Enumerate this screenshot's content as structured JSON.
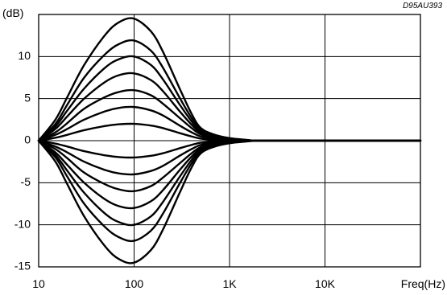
{
  "chart_data": {
    "type": "line",
    "title": "",
    "doc_code": "D95AU393",
    "xlabel": "Freq(Hz)",
    "ylabel": "(dB)",
    "x_scale": "log",
    "xlim": [
      10,
      100000
    ],
    "ylim": [
      -15,
      15
    ],
    "x_ticks": [
      {
        "value": 10,
        "label": "10"
      },
      {
        "value": 100,
        "label": "100"
      },
      {
        "value": 1000,
        "label": "1K"
      },
      {
        "value": 10000,
        "label": "10K"
      }
    ],
    "y_ticks": [
      {
        "value": 10,
        "label": "10"
      },
      {
        "value": 5,
        "label": "5"
      },
      {
        "value": 0,
        "label": "0"
      },
      {
        "value": -5,
        "label": "-5"
      },
      {
        "value": -10,
        "label": "-10"
      },
      {
        "value": -15,
        "label": "-15"
      }
    ],
    "grid": true,
    "line_color": "#000000",
    "x": [
      10,
      15,
      20,
      30,
      50,
      70,
      100,
      150,
      200,
      300,
      400,
      500,
      700,
      1000,
      1500,
      2000,
      5000,
      10000,
      100000
    ],
    "series": [
      {
        "values": [
          0,
          2.5,
          5.2,
          9.0,
          12.6,
          14.1,
          14.5,
          13.0,
          10.6,
          6.2,
          3.2,
          1.5,
          0.7,
          0.3,
          0.1,
          0,
          0,
          0,
          0
        ]
      },
      {
        "values": [
          0,
          2.0,
          4.3,
          7.5,
          10.3,
          11.5,
          11.9,
          10.7,
          8.7,
          5.1,
          2.7,
          1.3,
          0.6,
          0.25,
          0.08,
          0,
          0,
          0,
          0
        ]
      },
      {
        "values": [
          0,
          1.7,
          3.6,
          6.2,
          8.7,
          9.7,
          10.0,
          9.0,
          7.3,
          4.3,
          2.3,
          1.1,
          0.5,
          0.2,
          0.07,
          0,
          0,
          0,
          0
        ]
      },
      {
        "values": [
          0,
          1.4,
          2.9,
          5.0,
          7.0,
          7.8,
          8.0,
          7.2,
          5.9,
          3.5,
          1.9,
          0.95,
          0.4,
          0.17,
          0.05,
          0,
          0,
          0,
          0
        ]
      },
      {
        "values": [
          0,
          1.0,
          2.1,
          3.8,
          5.2,
          5.8,
          6.0,
          5.4,
          4.4,
          2.7,
          1.5,
          0.75,
          0.32,
          0.13,
          0.04,
          0,
          0,
          0,
          0
        ]
      },
      {
        "values": [
          0,
          0.7,
          1.4,
          2.5,
          3.5,
          3.9,
          4.0,
          3.6,
          3.0,
          1.8,
          1.0,
          0.5,
          0.22,
          0.09,
          0.03,
          0,
          0,
          0,
          0
        ]
      },
      {
        "values": [
          0,
          0.35,
          0.7,
          1.25,
          1.75,
          1.95,
          2.0,
          1.8,
          1.5,
          0.9,
          0.5,
          0.25,
          0.11,
          0.05,
          0.02,
          0,
          0,
          0,
          0
        ]
      },
      {
        "values": [
          0,
          -0.35,
          -0.7,
          -1.25,
          -1.75,
          -1.95,
          -2.0,
          -1.8,
          -1.5,
          -0.9,
          -0.5,
          -0.25,
          -0.11,
          -0.05,
          -0.02,
          0,
          0,
          0,
          0
        ]
      },
      {
        "values": [
          0,
          -0.7,
          -1.4,
          -2.5,
          -3.5,
          -3.9,
          -4.0,
          -3.6,
          -3.0,
          -1.8,
          -1.0,
          -0.5,
          -0.22,
          -0.09,
          -0.03,
          0,
          0,
          0,
          0
        ]
      },
      {
        "values": [
          0,
          -1.0,
          -2.1,
          -3.8,
          -5.2,
          -5.8,
          -6.0,
          -5.4,
          -4.4,
          -2.7,
          -1.5,
          -0.75,
          -0.32,
          -0.13,
          -0.04,
          0,
          0,
          0,
          0
        ]
      },
      {
        "values": [
          0,
          -1.4,
          -2.9,
          -5.0,
          -7.0,
          -7.8,
          -8.0,
          -7.2,
          -5.9,
          -3.5,
          -1.9,
          -0.95,
          -0.4,
          -0.17,
          -0.05,
          0,
          0,
          0,
          0
        ]
      },
      {
        "values": [
          0,
          -1.7,
          -3.6,
          -6.2,
          -8.7,
          -9.7,
          -10.0,
          -9.0,
          -7.3,
          -4.3,
          -2.3,
          -1.1,
          -0.5,
          -0.2,
          -0.07,
          0,
          0,
          0,
          0
        ]
      },
      {
        "values": [
          0,
          -2.0,
          -4.3,
          -7.5,
          -10.3,
          -11.5,
          -11.9,
          -10.7,
          -8.7,
          -5.1,
          -2.7,
          -1.3,
          -0.6,
          -0.25,
          -0.08,
          0,
          0,
          0,
          0
        ]
      },
      {
        "values": [
          0,
          -2.5,
          -5.2,
          -9.0,
          -12.6,
          -14.1,
          -14.5,
          -13.0,
          -10.6,
          -6.2,
          -3.2,
          -1.5,
          -0.7,
          -0.3,
          -0.1,
          0,
          0,
          0,
          0
        ]
      }
    ]
  }
}
